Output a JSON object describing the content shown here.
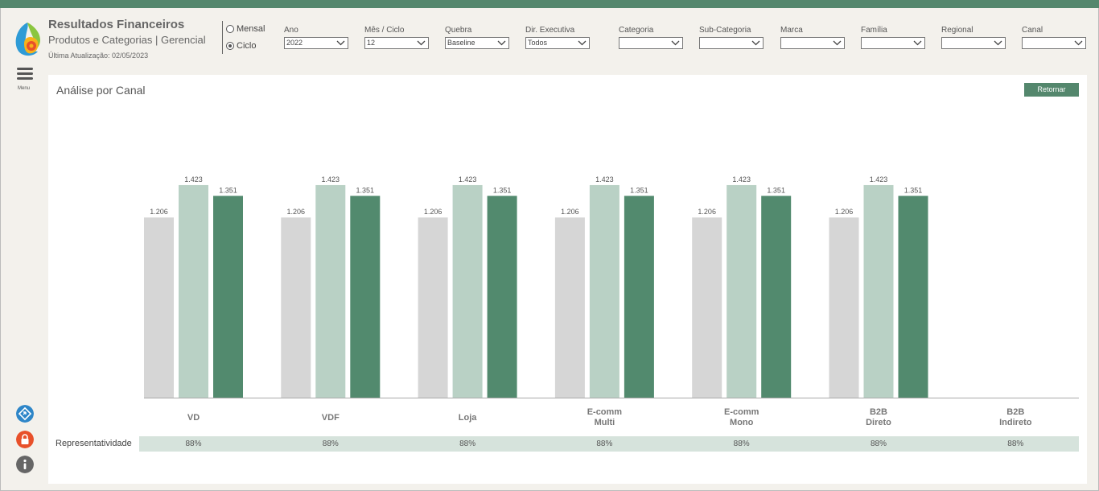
{
  "header": {
    "title": "Resultados Financeiros",
    "subtitle": "Produtos e Categorias | Gerencial",
    "last_update": "Última Atualização: 02/05/2023",
    "radio_mensal": "Mensal",
    "radio_ciclo": "Ciclo",
    "selected_radio": "Ciclo"
  },
  "filters": [
    {
      "label": "Ano",
      "value": "2022"
    },
    {
      "label": "Mês / Ciclo",
      "value": "12"
    },
    {
      "label": "Quebra",
      "value": "Baseline"
    },
    {
      "label": "Dir. Executiva",
      "value": "Todos"
    },
    {
      "label": "Categoria",
      "value": ""
    },
    {
      "label": "Sub-Categoria",
      "value": ""
    },
    {
      "label": "Marca",
      "value": ""
    },
    {
      "label": "Família",
      "value": ""
    },
    {
      "label": "Regional",
      "value": ""
    },
    {
      "label": "Canal",
      "value": ""
    }
  ],
  "sidebar": {
    "menu_label": "Menu",
    "icons": [
      "share-icon",
      "lock-icon",
      "info-icon"
    ]
  },
  "panel": {
    "title": "Análise por Canal",
    "return_label": "Retornar",
    "representatividade_label": "Representatividade"
  },
  "colors": {
    "accent": "#54876d",
    "bar_gray": "#d6d6d6",
    "bar_light": "#b9d1c5",
    "bar_dark": "#528a6e"
  },
  "chart_data": {
    "type": "bar",
    "categories": [
      [
        "VD"
      ],
      [
        "VDF"
      ],
      [
        "Loja"
      ],
      [
        "E-comm",
        "Multi"
      ],
      [
        "E-comm",
        "Mono"
      ],
      [
        "B2B",
        "Direto"
      ],
      [
        "B2B",
        "Indireto"
      ]
    ],
    "series": [
      {
        "values": [
          1206,
          1206,
          1206,
          1206,
          1206,
          1206,
          null
        ],
        "labels": [
          "1.206",
          "1.206",
          "1.206",
          "1.206",
          "1.206",
          "1.206",
          ""
        ]
      },
      {
        "values": [
          1423,
          1423,
          1423,
          1423,
          1423,
          1423,
          null
        ],
        "labels": [
          "1.423",
          "1.423",
          "1.423",
          "1.423",
          "1.423",
          "1.423",
          ""
        ]
      },
      {
        "values": [
          1351,
          1351,
          1351,
          1351,
          1351,
          1351,
          null
        ],
        "labels": [
          "1.351",
          "1.351",
          "1.351",
          "1.351",
          "1.351",
          "1.351",
          ""
        ]
      }
    ],
    "representatividade": [
      "88%",
      "88%",
      "88%",
      "88%",
      "88%",
      "88%",
      "88%"
    ],
    "ylim": [
      0,
      1800
    ],
    "grid": false,
    "legend": "none"
  }
}
